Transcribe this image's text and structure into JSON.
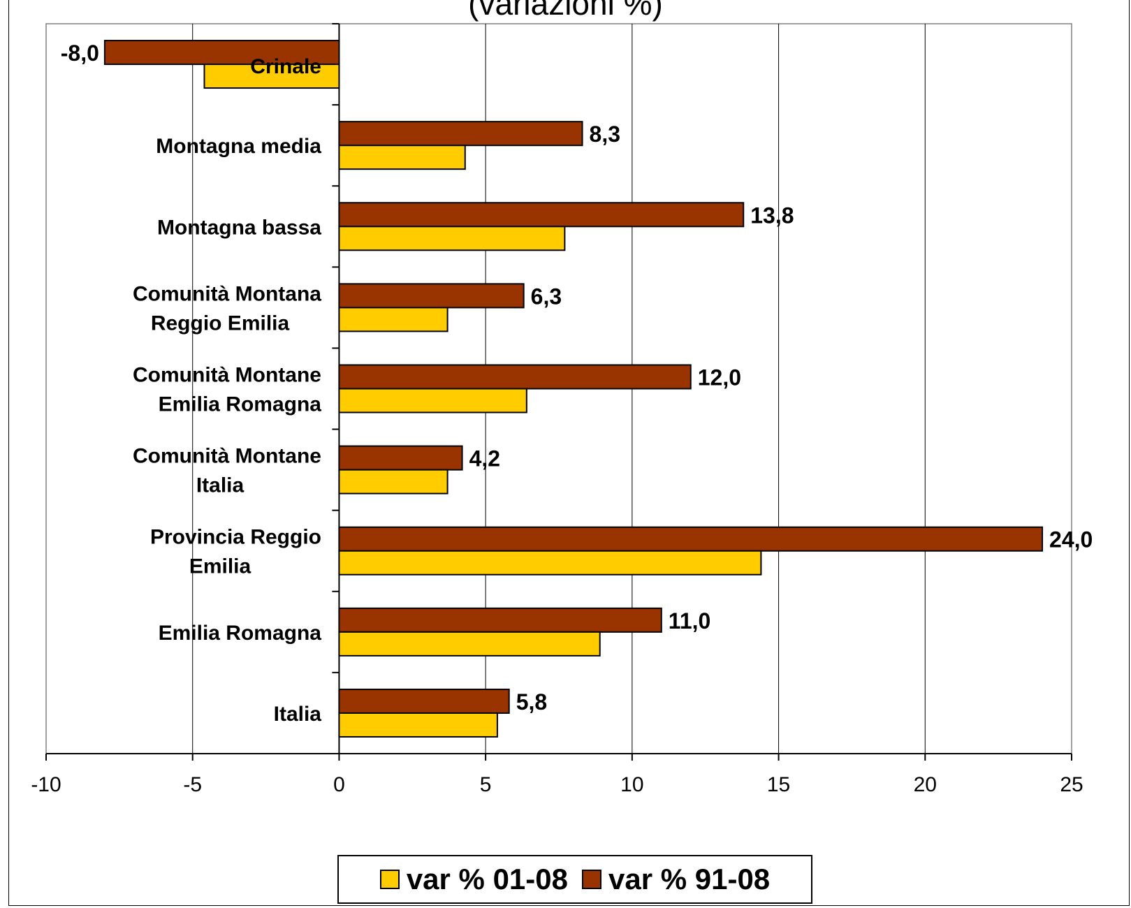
{
  "chart_data": {
    "type": "bar",
    "orientation": "horizontal",
    "title": "(variazioni %)",
    "categories": [
      [
        "Crinale"
      ],
      [
        "Montagna media"
      ],
      [
        "Montagna bassa"
      ],
      [
        "Comunità Montana",
        "Reggio Emilia"
      ],
      [
        "Comunità Montane",
        "Emilia Romagna"
      ],
      [
        "Comunità Montane",
        "Italia"
      ],
      [
        "Provincia Reggio",
        "Emilia"
      ],
      [
        "Emilia Romagna"
      ],
      [
        "Italia"
      ]
    ],
    "series": [
      {
        "name": "var % 91-08",
        "color": "#993300",
        "values": [
          -8.0,
          8.3,
          13.8,
          6.3,
          12.0,
          4.2,
          24.0,
          11.0,
          5.8
        ],
        "labels": [
          "-8,0",
          "8,3",
          "13,8",
          "6,3",
          "12,0",
          "4,2",
          "24,0",
          "11,0",
          "5,8"
        ]
      },
      {
        "name": "var % 01-08",
        "color": "#ffcc00",
        "values": [
          -4.6,
          4.3,
          7.7,
          3.7,
          6.4,
          3.7,
          14.4,
          8.9,
          5.4
        ]
      }
    ],
    "xlim": [
      -10,
      25
    ],
    "xticks": [
      "-10",
      "-5",
      "0",
      "5",
      "10",
      "15",
      "20",
      "25"
    ],
    "grid": true,
    "legend": {
      "position": "bottom",
      "entries": [
        "var % 01-08",
        "var % 91-08"
      ]
    }
  }
}
